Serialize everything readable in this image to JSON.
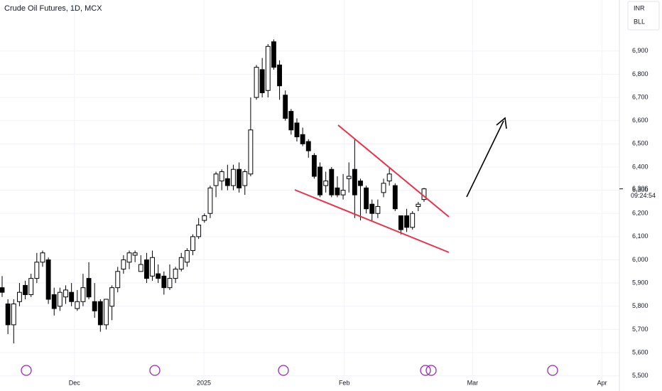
{
  "chart_data": {
    "type": "candlestick",
    "title": "Crude Oil Futures, 1D, MCX",
    "currency": "INR",
    "unit": "BLL",
    "up_color": "#ffffff",
    "down_color": "#000000",
    "grid": true,
    "xlim": [
      -0.37,
      106.8
    ],
    "xticks": [
      {
        "value": 12.5,
        "label": "Dec"
      },
      {
        "value": 34.9,
        "label": "2025"
      },
      {
        "value": 59.2,
        "label": "Feb"
      },
      {
        "value": 81.4,
        "label": "Mar"
      },
      {
        "value": 103.8,
        "label": "Apr"
      }
    ],
    "ylim": [
      5450,
      7120
    ],
    "yticks": [
      {
        "value": 5500,
        "label": "5,500"
      },
      {
        "value": 5600,
        "label": "5,600"
      },
      {
        "value": 5700,
        "label": "5,700"
      },
      {
        "value": 5800,
        "label": "5,800"
      },
      {
        "value": 5900,
        "label": "5,900"
      },
      {
        "value": 6000,
        "label": "6,000"
      },
      {
        "value": 6100,
        "label": "6,100"
      },
      {
        "value": 6200,
        "label": "6,200"
      },
      {
        "value": 6300,
        "label": "6,300"
      },
      {
        "value": 6400,
        "label": "6,400"
      },
      {
        "value": 6500,
        "label": "6,500"
      },
      {
        "value": 6600,
        "label": "6,600"
      },
      {
        "value": 6700,
        "label": "6,700"
      },
      {
        "value": 6800,
        "label": "6,800"
      },
      {
        "value": 6900,
        "label": "6,900"
      }
    ],
    "last_price": {
      "value": 6306,
      "label": "6,306"
    },
    "countdown": "09:24:54",
    "open": [
      5880,
      5810,
      5720,
      5820,
      5890,
      5850,
      5920,
      5990,
      6000,
      5850,
      5800,
      5840,
      5860,
      5790,
      5820,
      5920,
      5820,
      5820,
      5720,
      5800,
      5880,
      5960,
      5990,
      6020,
      5950,
      6000,
      5930,
      5940,
      5930,
      5880,
      5920,
      5960,
      5990,
      6040,
      6100,
      6170,
      6200,
      6320,
      6340,
      6350,
      6320,
      6390,
      6320,
      6370,
      6700,
      6820,
      6730,
      6940,
      6840,
      6710,
      6640,
      6590,
      6540,
      6510,
      6450,
      6400,
      6320,
      6390,
      6310,
      6280,
      6350,
      6390,
      6340,
      6310,
      6240,
      6200,
      6290,
      6340,
      6320,
      6190,
      6190,
      6140,
      6230,
      6260
    ],
    "high": [
      5930,
      5830,
      5830,
      5900,
      5910,
      5940,
      6030,
      6040,
      6010,
      5880,
      5880,
      5890,
      5900,
      5870,
      5940,
      5990,
      5900,
      5830,
      5830,
      5890,
      5970,
      6020,
      6040,
      6040,
      6020,
      6030,
      6040,
      5980,
      5950,
      5980,
      5970,
      6030,
      6050,
      6110,
      6180,
      6200,
      6320,
      6380,
      6390,
      6410,
      6410,
      6420,
      6390,
      6700,
      6840,
      6870,
      6930,
      6950,
      6860,
      6730,
      6650,
      6610,
      6570,
      6520,
      6460,
      6420,
      6380,
      6400,
      6360,
      6370,
      6420,
      6520,
      6350,
      6320,
      6260,
      6260,
      6350,
      6400,
      6330,
      6190,
      6220,
      6210,
      6250,
      6310
    ],
    "low": [
      5840,
      5680,
      5640,
      5800,
      5830,
      5840,
      5900,
      5970,
      5810,
      5760,
      5780,
      5810,
      5800,
      5780,
      5800,
      5830,
      5750,
      5690,
      5700,
      5740,
      5860,
      5940,
      5960,
      5990,
      5950,
      5900,
      5910,
      5900,
      5850,
      5870,
      5900,
      5950,
      5970,
      6020,
      6090,
      6160,
      6180,
      6270,
      6300,
      6300,
      6300,
      6290,
      6280,
      6360,
      6690,
      6700,
      6700,
      6820,
      6690,
      6600,
      6540,
      6510,
      6490,
      6440,
      6350,
      6270,
      6290,
      6270,
      6270,
      6260,
      6290,
      6180,
      6170,
      6200,
      6170,
      6180,
      6270,
      6320,
      6210,
      6110,
      6120,
      6130,
      6210,
      6250
    ],
    "close": [
      5860,
      5720,
      5810,
      5860,
      5850,
      5920,
      5990,
      6030,
      5830,
      5790,
      5860,
      5870,
      5820,
      5820,
      5880,
      5840,
      5780,
      5720,
      5830,
      5880,
      5950,
      6000,
      6030,
      6030,
      5980,
      5920,
      6010,
      5920,
      5880,
      5920,
      5960,
      6010,
      6040,
      6100,
      6150,
      6190,
      6310,
      6370,
      6380,
      6320,
      6390,
      6310,
      6380,
      6560,
      6830,
      6720,
      6920,
      6830,
      6750,
      6610,
      6560,
      6530,
      6500,
      6470,
      6360,
      6280,
      6340,
      6280,
      6280,
      6300,
      6360,
      6280,
      6320,
      6220,
      6200,
      6230,
      6330,
      6370,
      6220,
      6130,
      6140,
      6200,
      6240,
      6306
    ]
  }
}
